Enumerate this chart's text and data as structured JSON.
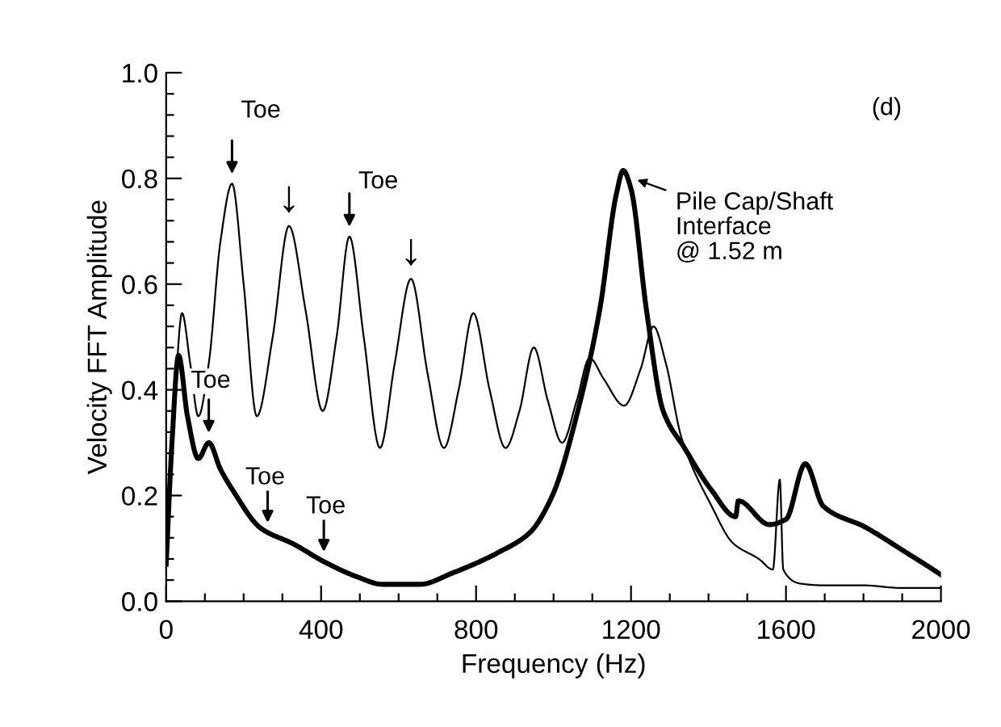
{
  "chart_data": {
    "type": "line",
    "xlabel": "Frequency (Hz)",
    "ylabel": "Velocity FFT Amplitude",
    "xlim": [
      0,
      2000
    ],
    "ylim": [
      0,
      1.0
    ],
    "xticks": [
      0,
      {
        "value": 100,
        "label": null
      },
      {
        "value": 200,
        "label": null
      },
      {
        "value": 300,
        "label": null
      },
      400,
      {
        "value": 500,
        "label": null
      },
      {
        "value": 600,
        "label": null
      },
      {
        "value": 700,
        "label": null
      },
      800,
      {
        "value": 900,
        "label": null
      },
      {
        "value": 1000,
        "label": null
      },
      {
        "value": 1100,
        "label": null
      },
      1200,
      {
        "value": 1300,
        "label": null
      },
      {
        "value": 1400,
        "label": null
      },
      {
        "value": 1500,
        "label": null
      },
      1600,
      {
        "value": 1700,
        "label": null
      },
      {
        "value": 1800,
        "label": null
      },
      {
        "value": 1900,
        "label": null
      },
      2000
    ],
    "yticks": [
      {
        "value": 0,
        "label": "0.0"
      },
      {
        "value": 0.04,
        "label": null
      },
      {
        "value": 0.08,
        "label": null
      },
      {
        "value": 0.12,
        "label": null
      },
      {
        "value": 0.16,
        "label": null
      },
      0.2,
      {
        "value": 0.24,
        "label": null
      },
      {
        "value": 0.28,
        "label": null
      },
      {
        "value": 0.32,
        "label": null
      },
      {
        "value": 0.36,
        "label": null
      },
      0.4,
      {
        "value": 0.44,
        "label": null
      },
      {
        "value": 0.48,
        "label": null
      },
      {
        "value": 0.52,
        "label": null
      },
      {
        "value": 0.56,
        "label": null
      },
      0.6,
      {
        "value": 0.64,
        "label": null
      },
      {
        "value": 0.68,
        "label": null
      },
      {
        "value": 0.72,
        "label": null
      },
      {
        "value": 0.76,
        "label": null
      },
      0.8,
      {
        "value": 0.84,
        "label": null
      },
      {
        "value": 0.88,
        "label": null
      },
      {
        "value": 0.92,
        "label": null
      },
      {
        "value": 0.96,
        "label": null
      },
      {
        "value": 1.0,
        "label": "1.0"
      }
    ],
    "grid": false,
    "legend": false,
    "marker": "none",
    "line_style": "solid",
    "series": [
      {
        "color": "#000000",
        "x": [
          0,
          20,
          41,
          62,
          83,
          110,
          140,
          170,
          200,
          234,
          275,
          317,
          360,
          404,
          440,
          473,
          510,
          552,
          590,
          632,
          675,
          717,
          755,
          793,
          835,
          876,
          912,
          949,
          985,
          1022,
          1060,
          1093,
          1130,
          1182,
          1225,
          1258,
          1290,
          1330,
          1408,
          1463,
          1530,
          1566,
          1584,
          1593,
          1641,
          1700,
          1800,
          1900,
          2000
        ],
        "values": [
          0.12,
          0.35,
          0.545,
          0.45,
          0.35,
          0.45,
          0.68,
          0.79,
          0.6,
          0.35,
          0.5,
          0.71,
          0.55,
          0.36,
          0.5,
          0.69,
          0.5,
          0.29,
          0.45,
          0.61,
          0.43,
          0.29,
          0.4,
          0.545,
          0.4,
          0.29,
          0.36,
          0.48,
          0.38,
          0.3,
          0.38,
          0.46,
          0.42,
          0.37,
          0.44,
          0.52,
          0.45,
          0.31,
          0.18,
          0.11,
          0.08,
          0.06,
          0.23,
          0.06,
          0.033,
          0.03,
          0.03,
          0.025,
          0.025
        ]
      },
      {
        "color": "#000000",
        "x": [
          0,
          15,
          32,
          55,
          83,
          110,
          140,
          172,
          241,
          262,
          324,
          407,
          490,
          559,
          655,
          738,
          862,
          939,
          997,
          1066,
          1120,
          1162,
          1180,
          1200,
          1240,
          1283,
          1338,
          1408,
          1470,
          1477,
          1557,
          1600,
          1650,
          1696,
          1805,
          1915,
          1990,
          2000
        ],
        "values": [
          0.07,
          0.3,
          0.465,
          0.35,
          0.27,
          0.3,
          0.25,
          0.21,
          0.14,
          0.13,
          0.11,
          0.075,
          0.047,
          0.032,
          0.032,
          0.053,
          0.094,
          0.13,
          0.2,
          0.37,
          0.555,
          0.77,
          0.815,
          0.78,
          0.55,
          0.36,
          0.29,
          0.21,
          0.16,
          0.19,
          0.145,
          0.155,
          0.26,
          0.18,
          0.14,
          0.09,
          0.055,
          0.05
        ]
      }
    ],
    "annotations": [
      {
        "text": "Toe",
        "x": 170,
        "y": 0.79
      },
      {
        "text": "↓",
        "x": 317,
        "y": 0.71
      },
      {
        "text": "Toe",
        "x": 473,
        "y": 0.69
      },
      {
        "text": "↓",
        "x": 632,
        "y": 0.61
      },
      {
        "text": "Toe",
        "x": 110,
        "y": 0.3
      },
      {
        "text": "Toe",
        "x": 262,
        "y": 0.13
      },
      {
        "text": "Toe",
        "x": 407,
        "y": 0.075
      },
      {
        "text": "Pile Cap/Shaft\nInterface\n@ 1.52 m",
        "x": 1180,
        "y": 0.815
      },
      "(d)"
    ]
  }
}
